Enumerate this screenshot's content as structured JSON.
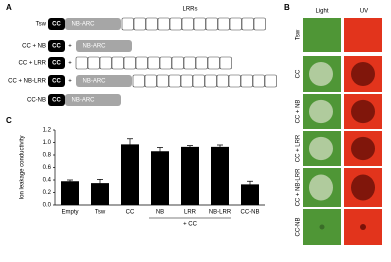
{
  "panels": {
    "a": "A",
    "b": "B",
    "c": "C"
  },
  "diagram": {
    "lrr_label": "LRRs",
    "rows": [
      {
        "label": "Tsw",
        "items": [
          "CC",
          "NB-ARC"
        ],
        "has_lrr": true
      },
      {
        "label": "CC + NB",
        "items": [
          "CC",
          "+",
          "NB-ARC"
        ],
        "has_lrr": false
      },
      {
        "label": "CC + LRR",
        "items": [
          "CC",
          "+"
        ],
        "has_lrr": true
      },
      {
        "label": "CC + NB-LRR",
        "items": [
          "CC",
          "+",
          "NB-ARC"
        ],
        "has_lrr": true
      },
      {
        "label": "CC-NB",
        "items": [
          "CC",
          "NB-ARC"
        ],
        "has_lrr": false
      }
    ]
  },
  "photos": {
    "columns": [
      "Light",
      "UV"
    ],
    "rows": [
      "Tsw",
      "CC",
      "CC + NB",
      "CC + LRR",
      "CC + NB-LRR",
      "CC-NB"
    ]
  },
  "chart_data": {
    "type": "bar",
    "y_label": "Ion leakage conductivity",
    "categories": [
      "Empty",
      "Tsw",
      "CC",
      "NB",
      "LRR",
      "NB-LRR",
      "CC-NB"
    ],
    "values": [
      0.38,
      0.35,
      0.97,
      0.86,
      0.93,
      0.93,
      0.33
    ],
    "errors": [
      0.02,
      0.06,
      0.09,
      0.06,
      0.02,
      0.03,
      0.05
    ],
    "group_label": "+ CC",
    "color": "#000000",
    "ylim": [
      0,
      1.2
    ],
    "yticks": [
      {
        "value": 0,
        "label": "0.0"
      },
      0.2,
      0.4,
      0.6,
      0.8,
      {
        "value": 1,
        "label": "1.0"
      },
      1.2
    ],
    "grid": false
  }
}
